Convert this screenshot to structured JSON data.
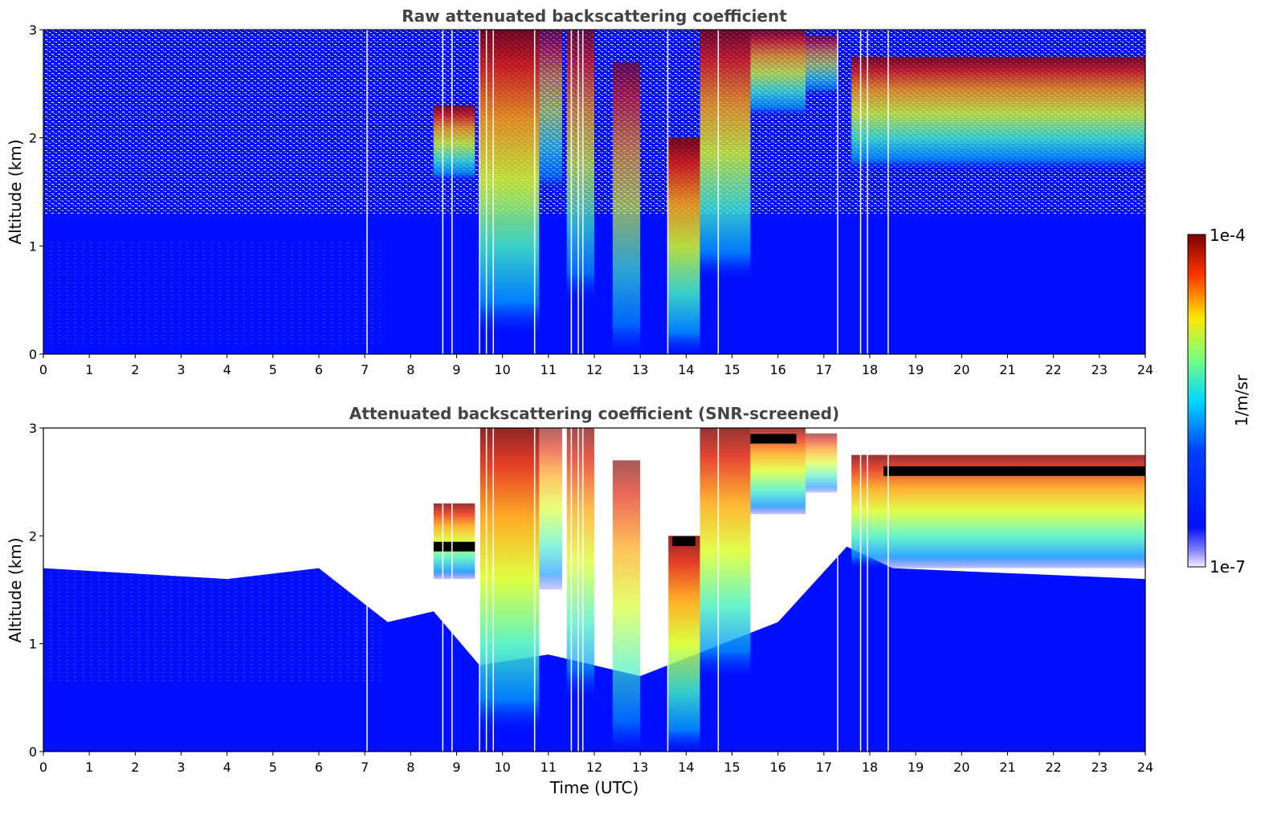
{
  "colors": {
    "background_field": "#0010ff",
    "colormap": [
      "#e6e6ff",
      "#0010ff",
      "#00c8ff",
      "#ffe600",
      "#ff3300",
      "#7a0000"
    ],
    "saturated": "#000000",
    "screened_out": "#ffffff"
  },
  "colorbar": {
    "label": "1/m/sr",
    "max_label": "1e-4",
    "min_label": "1e-7",
    "scale": "log",
    "colormap_name": "jet"
  },
  "chart_data": [
    {
      "type": "heatmap",
      "title": "Raw attenuated backscattering coefficient",
      "xlabel": "",
      "ylabel": "Altitude (km)",
      "xlim": [
        0,
        24
      ],
      "ylim": [
        0,
        3
      ],
      "xticks": [
        "0",
        "1",
        "2",
        "3",
        "4",
        "5",
        "6",
        "7",
        "8",
        "9",
        "10",
        "11",
        "12",
        "13",
        "14",
        "15",
        "16",
        "17",
        "18",
        "19",
        "20",
        "21",
        "22",
        "23",
        "24"
      ],
      "yticks": [
        "0",
        "1",
        "2",
        "3"
      ],
      "cloud_layers": [
        {
          "start": 8.5,
          "end": 9.4,
          "base_km": 1.6,
          "top_km": 2.3,
          "intensity": 0.8
        },
        {
          "start": 9.5,
          "end": 10.8,
          "base_km": 0.2,
          "top_km": 3.0,
          "intensity": 0.85
        },
        {
          "start": 10.8,
          "end": 11.3,
          "base_km": 1.5,
          "top_km": 3.0,
          "intensity": 0.6
        },
        {
          "start": 11.4,
          "end": 12.0,
          "base_km": 0.5,
          "top_km": 3.0,
          "intensity": 0.7
        },
        {
          "start": 12.4,
          "end": 13.0,
          "base_km": 0.0,
          "top_km": 2.7,
          "intensity": 0.65
        },
        {
          "start": 13.6,
          "end": 14.3,
          "base_km": 0.0,
          "top_km": 2.0,
          "intensity": 0.85
        },
        {
          "start": 14.3,
          "end": 15.4,
          "base_km": 0.7,
          "top_km": 3.0,
          "intensity": 0.8
        },
        {
          "start": 15.4,
          "end": 16.6,
          "base_km": 2.2,
          "top_km": 3.0,
          "intensity": 0.75
        },
        {
          "start": 16.6,
          "end": 17.3,
          "base_km": 2.4,
          "top_km": 2.95,
          "intensity": 0.6
        },
        {
          "start": 17.6,
          "end": 24.0,
          "base_km": 1.7,
          "top_km": 2.75,
          "intensity": 0.8
        }
      ],
      "missing_data_times": [
        7.05,
        8.7,
        8.9,
        9.5,
        9.65,
        9.8,
        10.7,
        11.5,
        11.65,
        11.75,
        13.6,
        14.7,
        17.3,
        17.8,
        17.95,
        18.4
      ]
    },
    {
      "type": "heatmap",
      "title": "Attenuated backscattering coefficient (SNR-screened)",
      "xlabel": "Time (UTC)",
      "ylabel": "Altitude (km)",
      "xlim": [
        0,
        24
      ],
      "ylim": [
        0,
        3
      ],
      "xticks": [
        "0",
        "1",
        "2",
        "3",
        "4",
        "5",
        "6",
        "7",
        "8",
        "9",
        "10",
        "11",
        "12",
        "13",
        "14",
        "15",
        "16",
        "17",
        "18",
        "19",
        "20",
        "21",
        "22",
        "23",
        "24"
      ],
      "yticks": [
        "0",
        "1",
        "2",
        "3"
      ],
      "screened_top_km": [
        [
          0,
          1.7
        ],
        [
          2,
          1.65
        ],
        [
          4,
          1.6
        ],
        [
          6,
          1.7
        ],
        [
          7.5,
          1.2
        ],
        [
          8.5,
          1.3
        ],
        [
          9.5,
          0.8
        ],
        [
          11,
          0.9
        ],
        [
          13,
          0.7
        ],
        [
          16,
          1.2
        ],
        [
          17.5,
          1.9
        ],
        [
          18.5,
          1.7
        ],
        [
          24,
          1.6
        ]
      ],
      "saturated_layers": [
        {
          "start": 8.5,
          "end": 9.4,
          "alt_km": 1.9
        },
        {
          "start": 13.7,
          "end": 14.2,
          "alt_km": 1.95
        },
        {
          "start": 15.4,
          "end": 16.4,
          "alt_km": 2.9
        },
        {
          "start": 18.3,
          "end": 24.0,
          "alt_km": 2.6
        }
      ]
    }
  ]
}
